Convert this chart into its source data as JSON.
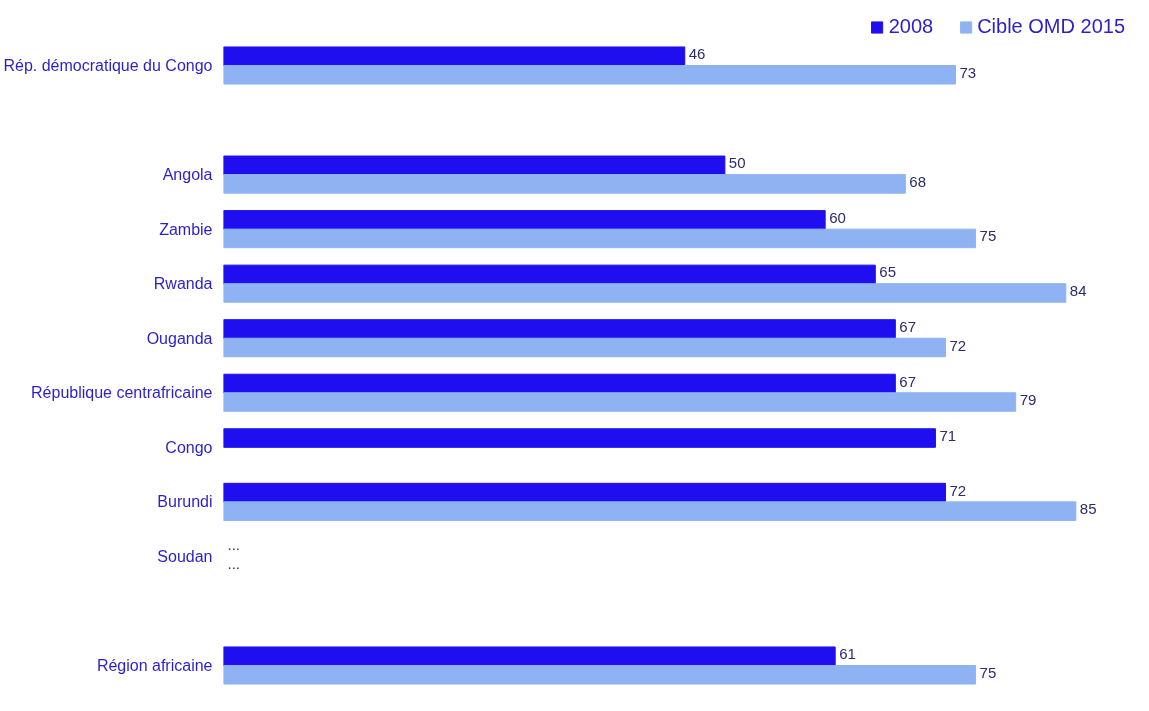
{
  "chart_data": {
    "type": "bar",
    "orientation": "horizontal",
    "legend": "top right",
    "categories": [
      "Rép. démocratique du Congo",
      null,
      "Angola",
      "Zambie",
      "Rwanda",
      "Ouganda",
      "République centrafricaine",
      "Congo",
      "Burundi",
      "Soudan",
      null,
      "Région africaine"
    ],
    "series": [
      {
        "name": "2008",
        "color": "#1f0ff0",
        "values": [
          46,
          null,
          50,
          60,
          65,
          67,
          67,
          71,
          72,
          null,
          null,
          61
        ],
        "value_labels": [
          "46",
          null,
          "50",
          "60",
          "65",
          "67",
          "67",
          "71",
          "72",
          "...",
          null,
          "61"
        ]
      },
      {
        "name": "Cible OMD 2015",
        "color": "#8fb3f2",
        "values": [
          73,
          null,
          68,
          75,
          84,
          72,
          79,
          null,
          85,
          null,
          null,
          75
        ],
        "value_labels": [
          "73",
          null,
          "68",
          "75",
          "84",
          "72",
          "79",
          null,
          "85",
          "...",
          null,
          "75"
        ]
      }
    ]
  }
}
